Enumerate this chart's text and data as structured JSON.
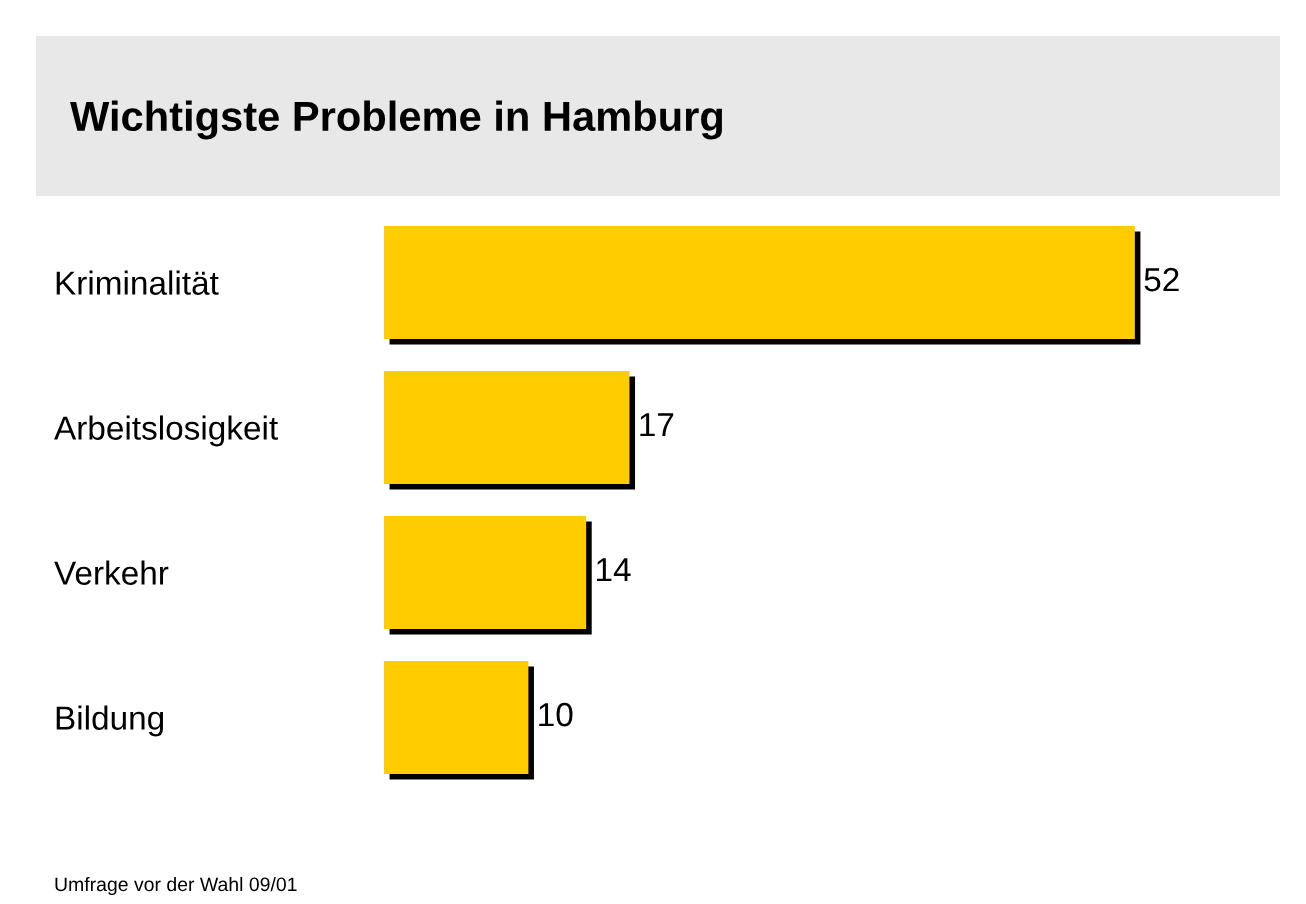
{
  "chart_data": {
    "type": "bar",
    "orientation": "horizontal",
    "title": "Wichtigste Probleme in Hamburg",
    "categories": [
      "Kriminalität",
      "Arbeitslosigkeit",
      "Verkehr",
      "Bildung"
    ],
    "values": [
      52,
      17,
      14,
      10
    ],
    "color": "#ffcc00",
    "data_labels": true,
    "annotations": [
      "Umfrage vor der Wahl 09/01"
    ]
  }
}
